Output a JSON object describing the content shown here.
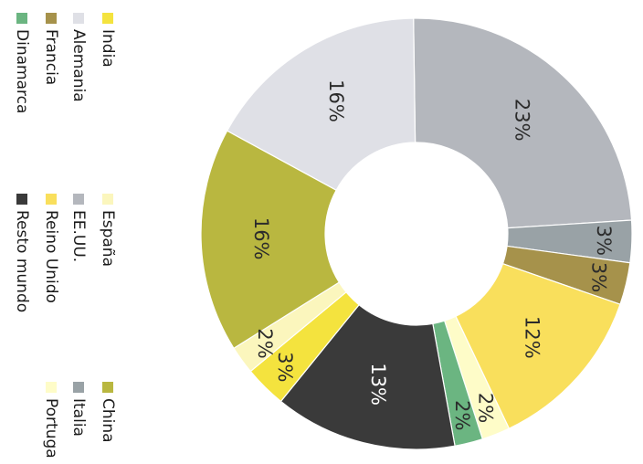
{
  "chart_data": {
    "type": "pie",
    "variant": "donut",
    "orientation": "rotated 90 degrees clockwise",
    "categories": [
      "India",
      "España",
      "China",
      "Alemania",
      "EE.UU.",
      "Italia",
      "Francia",
      "Reino Unido",
      "Portugal",
      "Dinamarca",
      "Resto mundo"
    ],
    "values": [
      3,
      2,
      16,
      16,
      23,
      3,
      3,
      12,
      2,
      2,
      13
    ],
    "labels": [
      "3%",
      "2%",
      "16%",
      "16%",
      "23%",
      "3%",
      "3%",
      "12%",
      "2%",
      "2%",
      "13%"
    ],
    "legend_labels": [
      "India",
      "España",
      "China",
      "Alemania",
      "EE.UU.",
      "Italia",
      "Francia",
      "Reino Unido",
      "Portuga",
      "Dinamarca",
      "Resto mundo"
    ],
    "colors": [
      "#f4e33e",
      "#fbf6bd",
      "#b9b740",
      "#dfe0e6",
      "#b4b7bd",
      "#99a2a6",
      "#a6924b",
      "#f9df5c",
      "#fefcc8",
      "#6bb581",
      "#3a3a3a"
    ],
    "legend_placement": "left",
    "drawing_order_clockwise_from_top": [
      4,
      5,
      6,
      7,
      8,
      9,
      10,
      0,
      1,
      2,
      3
    ]
  }
}
